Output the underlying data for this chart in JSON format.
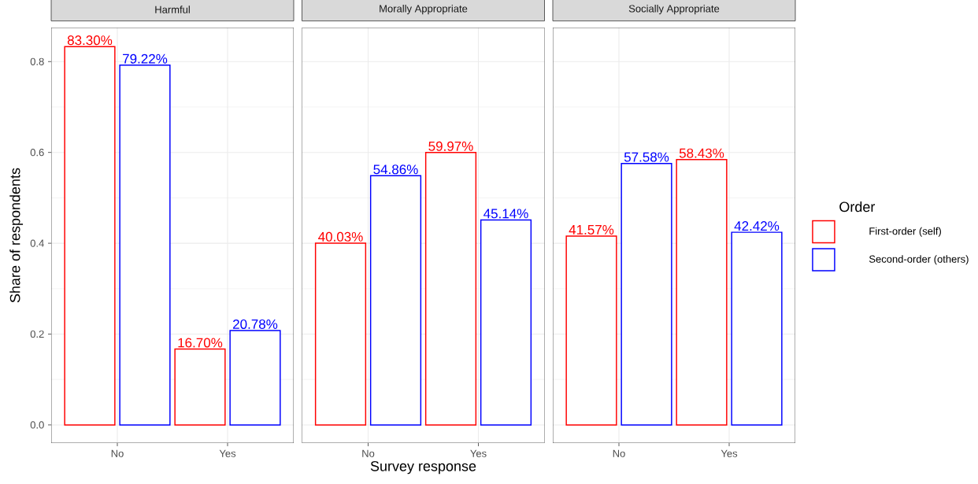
{
  "chart_data": [
    {
      "type": "bar",
      "title": "Harmful",
      "categories": [
        "No",
        "Yes"
      ],
      "ylabel": "Share of respondents",
      "ylim": [
        -0.04,
        0.875
      ],
      "yticks": [
        {
          "value": 0,
          "label": "0.0"
        },
        {
          "value": 0.2,
          "label": "0.2"
        },
        {
          "value": 0.4,
          "label": "0.4"
        },
        {
          "value": 0.6,
          "label": "0.6"
        },
        {
          "value": 0.8,
          "label": "0.8"
        }
      ],
      "grid": true,
      "series": [
        {
          "color": "#ff0000",
          "values": [
            0.833,
            0.167
          ],
          "value_labels": [
            "83.30%",
            "16.70%"
          ]
        },
        {
          "color": "#0000ff",
          "values": [
            0.7922,
            0.2078
          ],
          "value_labels": [
            "79.22%",
            "20.78%"
          ]
        }
      ]
    },
    {
      "type": "bar",
      "title": "Morally Appropriate",
      "categories": [
        "No",
        "Yes"
      ],
      "xlabel": "Survey response",
      "ylim": [
        -0.04,
        0.875
      ],
      "yticks": [
        0,
        0.2,
        0.4,
        0.6,
        0.8
      ],
      "grid": true,
      "tick_labels": "x",
      "series": [
        {
          "color": "#ff0000",
          "values": [
            0.4003,
            0.5997
          ],
          "value_labels": [
            "40.03%",
            "59.97%"
          ]
        },
        {
          "color": "#0000ff",
          "values": [
            0.5486,
            0.4514
          ],
          "value_labels": [
            "54.86%",
            "45.14%"
          ]
        }
      ]
    },
    {
      "type": "bar",
      "title": "Socially Appropriate",
      "categories": [
        "No",
        "Yes"
      ],
      "ylim": [
        -0.04,
        0.875
      ],
      "yticks": [
        0,
        0.2,
        0.4,
        0.6,
        0.8
      ],
      "grid": true,
      "tick_labels": "x",
      "legend": "right",
      "legend_title": "Order",
      "series": [
        {
          "name": "First-order (self)",
          "color": "#ff0000",
          "values": [
            0.4157,
            0.5843
          ],
          "value_labels": [
            "41.57%",
            "58.43%"
          ]
        },
        {
          "name": "Second-order (others)",
          "color": "#0000ff",
          "values": [
            0.5758,
            0.4242
          ],
          "value_labels": [
            "57.58%",
            "42.42%"
          ]
        }
      ]
    }
  ]
}
